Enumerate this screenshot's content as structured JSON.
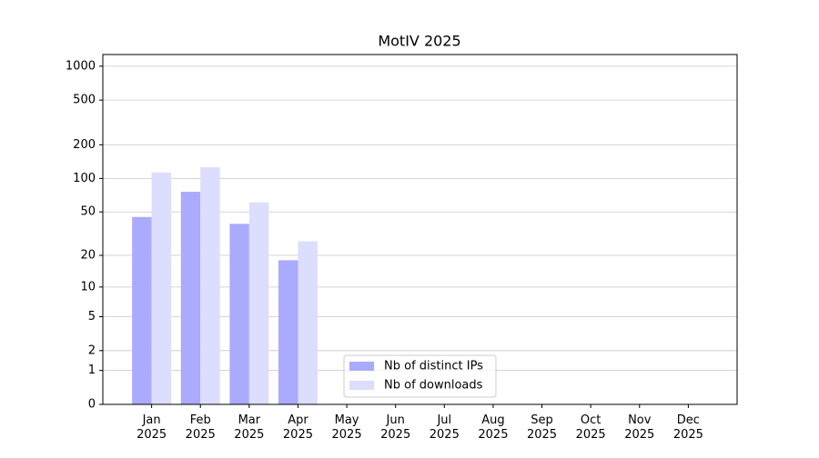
{
  "chart_data": {
    "type": "bar",
    "title": "MotIV 2025",
    "categories": [
      "Jan\n2025",
      "Feb\n2025",
      "Mar\n2025",
      "Apr\n2025",
      "May\n2025",
      "Jun\n2025",
      "Jul\n2025",
      "Aug\n2025",
      "Sep\n2025",
      "Oct\n2025",
      "Nov\n2025",
      "Dec\n2025"
    ],
    "series": [
      {
        "name": "Nb of distinct IPs",
        "color": "#aaaaff",
        "values": [
          45,
          76,
          39,
          18,
          null,
          null,
          null,
          null,
          null,
          null,
          null,
          null
        ]
      },
      {
        "name": "Nb of downloads",
        "color": "#ddddff",
        "values": [
          113,
          126,
          61,
          27,
          null,
          null,
          null,
          null,
          null,
          null,
          null,
          null
        ]
      }
    ],
    "yscale": "log1p",
    "ylim": [
      0,
      1270
    ],
    "yticks": [
      0,
      1,
      2,
      5,
      10,
      20,
      50,
      100,
      200,
      500,
      1000
    ],
    "grid": true,
    "legend": "lower center"
  }
}
